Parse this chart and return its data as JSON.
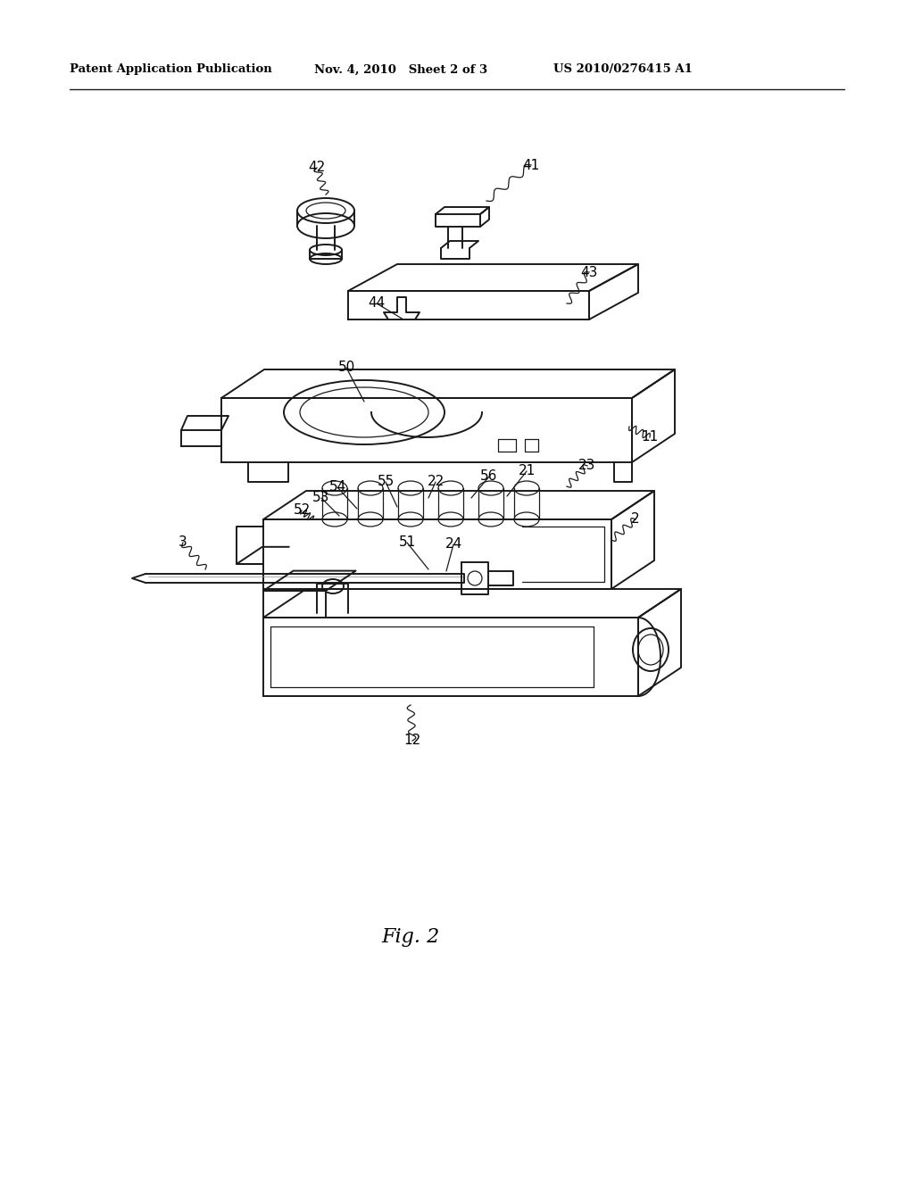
{
  "background_color": "#ffffff",
  "line_color": "#1a1a1a",
  "header_left": "Patent Application Publication",
  "header_mid": "Nov. 4, 2010   Sheet 2 of 3",
  "header_right": "US 2010/0276415 A1",
  "caption": "Fig. 2",
  "fig_width": 10.24,
  "fig_height": 13.2,
  "dpi": 100
}
